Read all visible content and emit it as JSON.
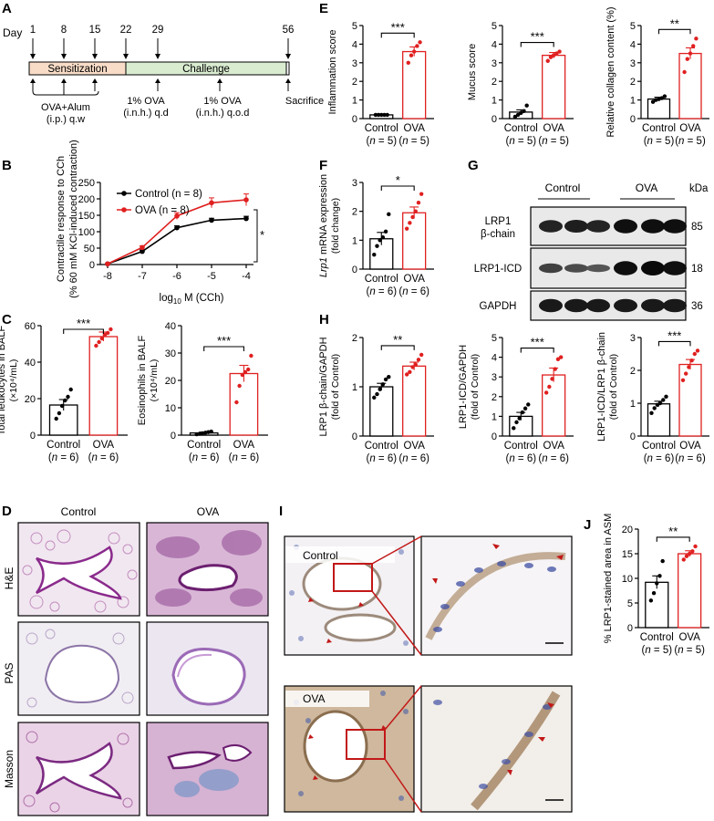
{
  "panels": {
    "A": {
      "letter": "A",
      "day_label": "Day",
      "days": [
        "1",
        "8",
        "15",
        "22",
        "29",
        "56"
      ],
      "sensitization": "Sensitization",
      "challenge": "Challenge",
      "sens_color": "#f8dcc7",
      "chal_color": "#d9ecd0",
      "label_alum_1": "OVA+Alum",
      "label_alum_2": "(i.p.) q.w",
      "label_qd_1": "1% OVA",
      "label_qd_2": "(i.n.h.) q.d",
      "label_qod_1": "1% OVA",
      "label_qod_2": "(i.n.h.) q.o.d",
      "label_sac": "Sacrifice"
    },
    "B": {
      "letter": "B",
      "legend_ctrl": "Control (n = 8)",
      "legend_ova": "OVA (n = 8)",
      "ylabel_1": "Contractile response to CCh",
      "ylabel_2": "(% 60 mM KCl-induced contraction)",
      "xlabel": "log10 M (CCh)",
      "sig": "*"
    },
    "C": {
      "letter": "C"
    },
    "D": {
      "letter": "D",
      "col_control": "Control",
      "col_ova": "OVA",
      "row_he": "H&E",
      "row_pas": "PAS",
      "row_masson": "Masson"
    },
    "E": {
      "letter": "E"
    },
    "F": {
      "letter": "F"
    },
    "G": {
      "letter": "G",
      "group_control": "Control",
      "group_ova": "OVA",
      "kda": "kDa",
      "rows": [
        {
          "label1": "LRP1",
          "label2": "β-chain",
          "kda": "85",
          "ctrl": [
            0.75,
            0.8,
            0.75
          ],
          "ova": [
            0.95,
            0.95,
            0.95
          ]
        },
        {
          "label1": "LRP1-ICD",
          "label2": "",
          "kda": "18",
          "ctrl": [
            0.45,
            0.35,
            0.25
          ],
          "ova": [
            0.95,
            1.0,
            0.95
          ]
        },
        {
          "label1": "GAPDH",
          "label2": "",
          "kda": "36",
          "ctrl": [
            0.85,
            0.85,
            0.85
          ],
          "ova": [
            0.85,
            0.85,
            0.85
          ]
        }
      ]
    },
    "H": {
      "letter": "H"
    },
    "I": {
      "letter": "I",
      "label_control": "Control",
      "label_ova": "OVA"
    },
    "J": {
      "letter": "J"
    }
  },
  "chart_data": [
    {
      "id": "B",
      "type": "line",
      "x": [
        -8,
        -7,
        -6,
        -5,
        -4
      ],
      "xticks": [
        "-8",
        "-7",
        "-6",
        "-5",
        "-4"
      ],
      "ylim": [
        0,
        250
      ],
      "yticks": [
        0,
        50,
        100,
        150,
        200,
        250
      ],
      "series": [
        {
          "name": "Control (n = 8)",
          "values": [
            2,
            40,
            112,
            135,
            140
          ],
          "err": [
            1,
            4,
            6,
            6,
            7
          ],
          "color": "#000000"
        },
        {
          "name": "OVA (n = 8)",
          "values": [
            2,
            52,
            148,
            188,
            197
          ],
          "err": [
            1,
            5,
            10,
            15,
            18
          ],
          "color": "#e02020"
        }
      ]
    },
    {
      "id": "C1",
      "type": "bar",
      "ylabel_1": "Total leukocytes in BALF",
      "ylabel_2": "(×10⁴/mL)",
      "ylim": [
        0,
        60
      ],
      "yticks": [
        0,
        20,
        40,
        60
      ],
      "categories": [
        "Control",
        "OVA"
      ],
      "ns": [
        "(n = 6)",
        "(n = 6)"
      ],
      "values": [
        16.5,
        54
      ],
      "err": [
        3,
        2.5
      ],
      "points": [
        [
          9,
          12,
          16,
          19,
          21,
          25
        ],
        [
          49,
          51,
          53,
          55,
          56,
          58
        ]
      ],
      "sig": "***"
    },
    {
      "id": "C2",
      "type": "bar",
      "ylabel_1": "Eosinophils in BALF",
      "ylabel_2": "(×10⁴/mL)",
      "ylim": [
        0,
        40
      ],
      "yticks": [
        0,
        10,
        20,
        30,
        40
      ],
      "categories": [
        "Control",
        "OVA"
      ],
      "ns": [
        "(n = 6)",
        "(n = 6)"
      ],
      "values": [
        0.8,
        22.5
      ],
      "err": [
        0.3,
        3
      ],
      "points": [
        [
          0.3,
          0.5,
          0.7,
          0.9,
          1.1,
          1.3
        ],
        [
          12,
          18,
          22,
          23,
          24,
          29
        ]
      ],
      "sig": "***"
    },
    {
      "id": "E1",
      "type": "bar",
      "ylabel_1": "Inflammation score",
      "ylabel_2": "",
      "ylim": [
        0,
        5
      ],
      "yticks": [
        0,
        1,
        2,
        3,
        4,
        5
      ],
      "categories": [
        "Control",
        "OVA"
      ],
      "ns": [
        "(n = 5)",
        "(n = 5)"
      ],
      "values": [
        0.2,
        3.6
      ],
      "err": [
        0.05,
        0.25
      ],
      "points": [
        [
          0.2,
          0.2,
          0.2,
          0.2,
          0.2
        ],
        [
          3.0,
          3.4,
          3.6,
          3.9,
          4.1
        ]
      ],
      "sig": "***"
    },
    {
      "id": "E2",
      "type": "bar",
      "ylabel_1": "Mucus score",
      "ylabel_2": "",
      "ylim": [
        0,
        5
      ],
      "yticks": [
        0,
        1,
        2,
        3,
        4,
        5
      ],
      "categories": [
        "Control",
        "OVA"
      ],
      "ns": [
        "(n = 5)",
        "(n = 5)"
      ],
      "values": [
        0.35,
        3.4
      ],
      "err": [
        0.12,
        0.15
      ],
      "points": [
        [
          0.1,
          0.2,
          0.3,
          0.4,
          0.7
        ],
        [
          3.1,
          3.3,
          3.4,
          3.5,
          3.6
        ]
      ],
      "sig": "***"
    },
    {
      "id": "E3",
      "type": "bar",
      "ylabel_1": "Relative collagen content (%)",
      "ylabel_2": "",
      "ylim": [
        0,
        5
      ],
      "yticks": [
        0,
        1,
        2,
        3,
        4,
        5
      ],
      "categories": [
        "Control",
        "OVA"
      ],
      "ns": [
        "(n = 5)",
        "(n = 5)"
      ],
      "values": [
        1.05,
        3.5
      ],
      "err": [
        0.1,
        0.3
      ],
      "points": [
        [
          0.9,
          1.0,
          1.05,
          1.1,
          1.2
        ],
        [
          2.5,
          3.2,
          3.5,
          3.9,
          4.3
        ]
      ],
      "sig": "**"
    },
    {
      "id": "F",
      "type": "bar",
      "ylabel_1": "Lrp1 mRNA expression",
      "ylabel_2": "(fold change)",
      "ylim": [
        0,
        3
      ],
      "yticks": [
        0,
        1,
        2,
        3
      ],
      "categories": [
        "Control",
        "OVA"
      ],
      "ns": [
        "(n = 6)",
        "(n = 6)"
      ],
      "values": [
        1.05,
        1.95
      ],
      "err": [
        0.22,
        0.2
      ],
      "points": [
        [
          0.5,
          0.8,
          1.0,
          1.1,
          1.3,
          1.9
        ],
        [
          1.4,
          1.6,
          1.8,
          2.0,
          2.3,
          2.6
        ]
      ],
      "sig": "*"
    },
    {
      "id": "H1",
      "type": "bar",
      "ylabel_1": "LRP1 β-chain/GAPDH",
      "ylabel_2": "(fold of Control)",
      "ylim": [
        0,
        2
      ],
      "yticks": [
        0,
        1,
        2
      ],
      "categories": [
        "Control",
        "OVA"
      ],
      "ns": [
        "(n = 6)",
        "(n = 6)"
      ],
      "values": [
        1.0,
        1.42
      ],
      "err": [
        0.07,
        0.08
      ],
      "points": [
        [
          0.78,
          0.85,
          0.95,
          1.05,
          1.15,
          1.2
        ],
        [
          1.25,
          1.3,
          1.4,
          1.45,
          1.55,
          1.65
        ]
      ],
      "sig": "**"
    },
    {
      "id": "H2",
      "type": "bar",
      "ylabel_1": "LRP1-ICD/GAPDH",
      "ylabel_2": "(fold of Control)",
      "ylim": [
        0,
        5
      ],
      "yticks": [
        0,
        1,
        2,
        3,
        4,
        5
      ],
      "categories": [
        "Control",
        "OVA"
      ],
      "ns": [
        "(n = 6)",
        "(n = 6)"
      ],
      "values": [
        1.0,
        3.1
      ],
      "err": [
        0.2,
        0.35
      ],
      "points": [
        [
          0.4,
          0.7,
          0.9,
          1.2,
          1.4,
          1.6
        ],
        [
          2.2,
          2.5,
          2.9,
          3.4,
          3.9,
          4.0
        ]
      ],
      "sig": "***"
    },
    {
      "id": "H3",
      "type": "bar",
      "ylabel_1": "LRP1-ICD/LRP1 β-chain",
      "ylabel_2": "(fold of Control)",
      "ylim": [
        0,
        3
      ],
      "yticks": [
        0,
        1,
        2,
        3
      ],
      "categories": [
        "Control",
        "OVA"
      ],
      "ns": [
        "(n = 6)",
        "(n = 6)"
      ],
      "values": [
        0.98,
        2.18
      ],
      "err": [
        0.08,
        0.15
      ],
      "points": [
        [
          0.7,
          0.85,
          0.95,
          1.0,
          1.1,
          1.2
        ],
        [
          1.7,
          1.9,
          2.1,
          2.3,
          2.5,
          2.6
        ]
      ],
      "sig": "***"
    },
    {
      "id": "J",
      "type": "bar",
      "ylabel_1": "% LRP1-stained area in ASM",
      "ylabel_2": "",
      "ylim": [
        0,
        20
      ],
      "yticks": [
        0,
        5,
        10,
        15,
        20
      ],
      "categories": [
        "Control",
        "OVA"
      ],
      "ns": [
        "(n = 5)",
        "(n = 5)"
      ],
      "values": [
        9.2,
        15
      ],
      "err": [
        1.3,
        0.6
      ],
      "points": [
        [
          5.5,
          7,
          9,
          10.5,
          13.5
        ],
        [
          13.8,
          14.5,
          15,
          15.5,
          16.5
        ]
      ],
      "sig": "**"
    }
  ]
}
